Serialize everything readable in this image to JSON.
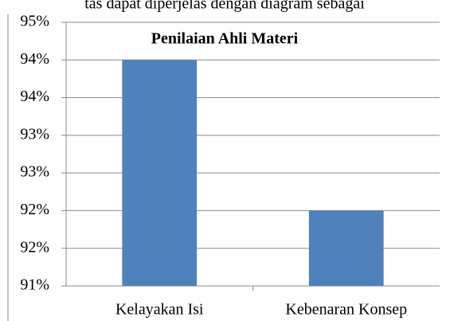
{
  "header_text": "tas dapat diperjelas dengan diagram sebagai",
  "chart_data": {
    "type": "bar",
    "title": "Penilaian Ahli Materi",
    "categories": [
      "Kelayakan Isi",
      "Kebenaran Konsep"
    ],
    "values": [
      94,
      92
    ],
    "color": "#4f81bd",
    "ylim": [
      91,
      94.5
    ],
    "yticks": [
      {
        "value": 91,
        "label": "91%"
      },
      {
        "value": 91.5,
        "label": "92%"
      },
      {
        "value": 92,
        "label": "92%"
      },
      {
        "value": 92.5,
        "label": "93%"
      },
      {
        "value": 93,
        "label": "93%"
      },
      {
        "value": 93.5,
        "label": "94%"
      },
      {
        "value": 94,
        "label": "94%"
      },
      {
        "value": 94.5,
        "label": "95%"
      }
    ],
    "grid": true
  }
}
